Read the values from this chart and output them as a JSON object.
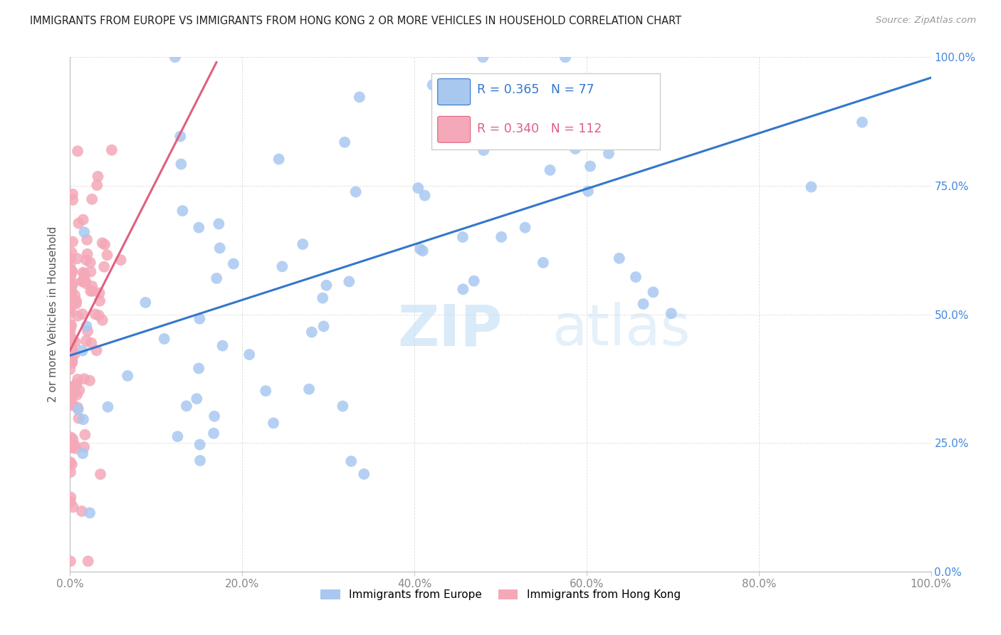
{
  "title": "IMMIGRANTS FROM EUROPE VS IMMIGRANTS FROM HONG KONG 2 OR MORE VEHICLES IN HOUSEHOLD CORRELATION CHART",
  "source": "Source: ZipAtlas.com",
  "ylabel": "2 or more Vehicles in Household",
  "xlim": [
    0,
    1.0
  ],
  "ylim": [
    0,
    1.0
  ],
  "x_tick_labels": [
    "0.0%",
    "20.0%",
    "40.0%",
    "60.0%",
    "80.0%",
    "100.0%"
  ],
  "y_tick_labels": [
    "0.0%",
    "25.0%",
    "50.0%",
    "75.0%",
    "100.0%"
  ],
  "x_tick_positions": [
    0.0,
    0.2,
    0.4,
    0.6,
    0.8,
    1.0
  ],
  "y_tick_positions": [
    0.0,
    0.25,
    0.5,
    0.75,
    1.0
  ],
  "legend_europe_label": "Immigrants from Europe",
  "legend_hk_label": "Immigrants from Hong Kong",
  "R_europe": 0.365,
  "N_europe": 77,
  "R_hk": 0.34,
  "N_hk": 112,
  "europe_color": "#a8c8f0",
  "hk_color": "#f4a8b8",
  "europe_line_color": "#3377cc",
  "hk_line_color": "#e06080",
  "watermark_zip": "ZIP",
  "watermark_atlas": "atlas",
  "europe_line_x": [
    0.0,
    1.0
  ],
  "europe_line_y": [
    0.42,
    0.96
  ],
  "hk_line_x": [
    0.0,
    0.17
  ],
  "hk_line_y": [
    0.43,
    0.99
  ]
}
